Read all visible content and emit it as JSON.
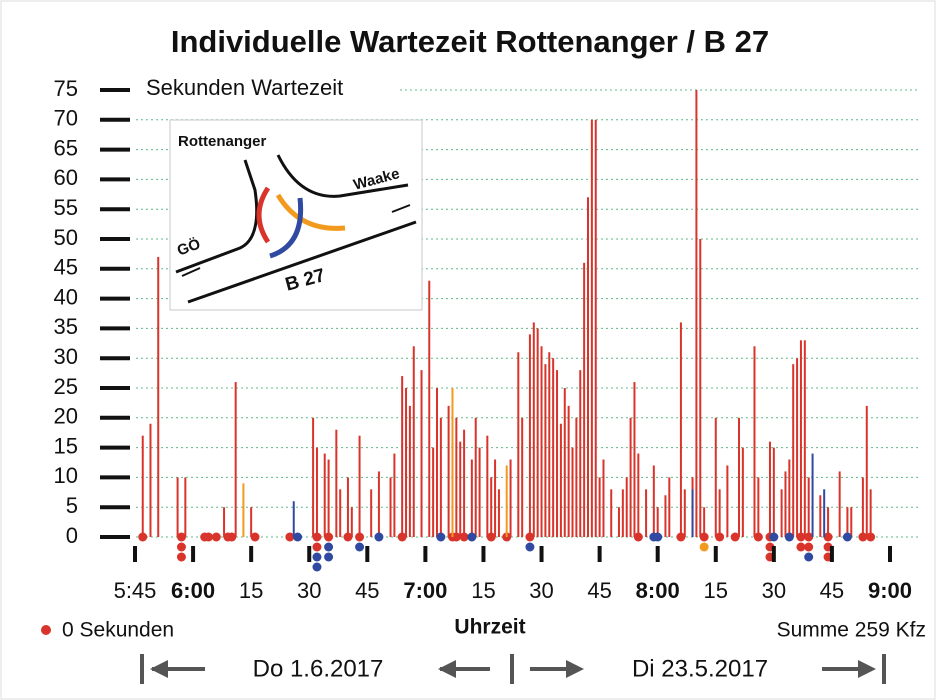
{
  "chart_data": {
    "type": "bar",
    "title": "Individuelle Wartezeit Rottenanger / B 27",
    "y_axis_label": "Sekunden Wartezeit",
    "x_axis_label": "Uhrzeit",
    "legend_label": "0 Sekunden",
    "total_label": "Summe 259 Kfz",
    "date_left": "Do 1.6.2017",
    "date_right": "Di 23.5.2017",
    "inset": {
      "labels": [
        "Rottenanger",
        "Waake",
        "GÖ",
        "B 27"
      ]
    },
    "xlim": [
      345,
      540
    ],
    "xticks": [
      {
        "value": 345,
        "label": "5:45"
      },
      {
        "value": 360,
        "label": "6:00"
      },
      {
        "value": 375,
        "label": "15"
      },
      {
        "value": 390,
        "label": "30"
      },
      {
        "value": 405,
        "label": "45"
      },
      {
        "value": 420,
        "label": "7:00"
      },
      {
        "value": 435,
        "label": "15"
      },
      {
        "value": 450,
        "label": "30"
      },
      {
        "value": 465,
        "label": "45"
      },
      {
        "value": 480,
        "label": "8:00"
      },
      {
        "value": 495,
        "label": "15"
      },
      {
        "value": 510,
        "label": "30"
      },
      {
        "value": 525,
        "label": "45"
      },
      {
        "value": 540,
        "label": "9:00"
      }
    ],
    "ylim": [
      0,
      75
    ],
    "yticks": [
      0,
      5,
      10,
      15,
      20,
      25,
      30,
      35,
      40,
      45,
      50,
      55,
      60,
      65,
      70,
      75
    ],
    "grid": true,
    "series": [
      {
        "color": "#d9342b",
        "x": [
          347,
          349,
          351,
          356,
          358,
          368,
          371,
          375,
          391,
          392,
          394,
          395,
          397,
          398,
          400,
          401,
          403,
          406,
          408,
          411,
          412,
          414,
          415,
          416,
          417,
          419,
          421,
          422,
          423,
          424,
          426,
          428,
          429,
          430,
          432,
          433,
          434,
          436,
          437,
          438,
          439,
          442,
          444,
          445,
          447,
          448,
          449,
          450,
          451,
          452,
          453,
          454,
          455,
          456,
          457,
          458,
          459,
          460,
          461,
          462,
          463,
          464,
          465,
          466,
          468,
          470,
          471,
          472,
          473,
          474,
          475,
          477,
          479,
          480,
          482,
          483,
          486,
          487,
          489,
          490,
          491,
          492,
          495,
          496,
          498,
          501,
          502,
          505,
          506,
          509,
          510,
          512,
          513,
          514,
          515,
          516,
          517,
          518,
          519,
          522,
          524,
          527,
          529,
          530,
          533,
          534,
          535,
          347,
          357,
          357,
          357,
          363,
          364,
          366,
          369,
          370,
          376,
          385,
          392,
          392,
          395,
          400,
          403,
          414,
          427,
          428,
          430,
          437,
          441,
          447,
          475,
          486,
          492,
          496,
          500,
          506,
          509,
          509,
          509,
          517,
          517,
          519,
          519,
          524,
          524,
          524,
          533,
          535
        ],
        "values": [
          17,
          19,
          47,
          10,
          10,
          5,
          26,
          5,
          20,
          15,
          14,
          13,
          18,
          8,
          10,
          5,
          17,
          8,
          11,
          10,
          14,
          27,
          25,
          22,
          32,
          28,
          43,
          15,
          25,
          20,
          22,
          20,
          16,
          18,
          13,
          20,
          15,
          17,
          10,
          13,
          8,
          13,
          31,
          20,
          34,
          36,
          35,
          32,
          29,
          31,
          30,
          28,
          19,
          25,
          22,
          15,
          20,
          28,
          46,
          57,
          70,
          70,
          10,
          13,
          8,
          5,
          8,
          10,
          20,
          26,
          14,
          8,
          12,
          5,
          7,
          10,
          36,
          8,
          10,
          75,
          50,
          5,
          20,
          8,
          12,
          20,
          15,
          32,
          10,
          16,
          15,
          8,
          11,
          13,
          29,
          30,
          33,
          33,
          10,
          7,
          5,
          11,
          5,
          5,
          10,
          22,
          8,
          0,
          0,
          0,
          0,
          0,
          0,
          0,
          0,
          0,
          0,
          0,
          0,
          0,
          0,
          0,
          0,
          0,
          0,
          0,
          0,
          0,
          0,
          0,
          0,
          0,
          0,
          0,
          0,
          0,
          0,
          0,
          0,
          0,
          0,
          0,
          0,
          0,
          0,
          0,
          0,
          0
        ]
      },
      {
        "color": "#2f4aa0",
        "x": [
          386,
          489,
          520,
          523,
          387,
          392,
          392,
          395,
          395,
          403,
          408,
          424,
          432,
          447,
          479,
          480,
          510,
          514,
          519,
          529
        ],
        "values": [
          6,
          8,
          14,
          8,
          0,
          0,
          0,
          0,
          0,
          0,
          0,
          0,
          0,
          0,
          0,
          0,
          0,
          0,
          0,
          0
        ]
      },
      {
        "color": "#f29a1e",
        "x": [
          373,
          427,
          441,
          492
        ],
        "values": [
          9,
          25,
          12,
          0
        ]
      }
    ]
  }
}
